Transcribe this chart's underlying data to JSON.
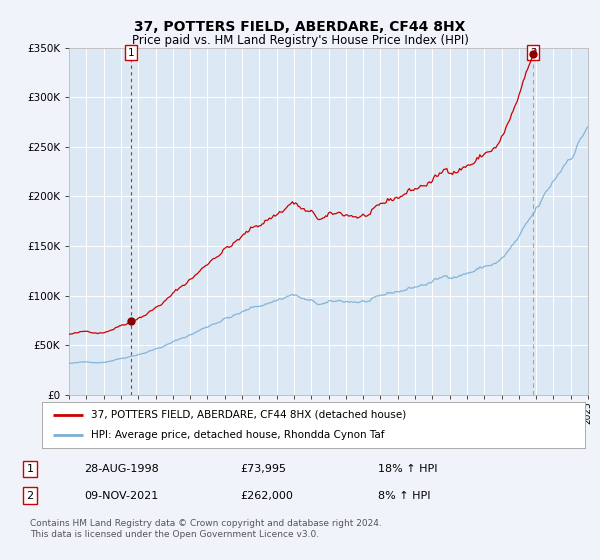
{
  "title": "37, POTTERS FIELD, ABERDARE, CF44 8HX",
  "subtitle": "Price paid vs. HM Land Registry's House Price Index (HPI)",
  "title_fontsize": 10,
  "subtitle_fontsize": 8.5,
  "plot_bg_color": "#dce9f5",
  "outer_bg_color": "#f0f4fa",
  "red_line_color": "#cc0000",
  "blue_line_color": "#7bafd4",
  "marker_color": "#8b0000",
  "vline1_color": "#cc0000",
  "vline2_color": "#888888",
  "ylim": [
    0,
    350000
  ],
  "yticks": [
    0,
    50000,
    100000,
    150000,
    200000,
    250000,
    300000,
    350000
  ],
  "purchase1_year_idx": 43,
  "purchase1_value": 73995,
  "purchase2_year_idx": 322,
  "purchase2_value": 262000,
  "legend_label1": "37, POTTERS FIELD, ABERDARE, CF44 8HX (detached house)",
  "legend_label2": "HPI: Average price, detached house, Rhondda Cynon Taf",
  "footnote1_label": "1",
  "footnote1_date": "28-AUG-1998",
  "footnote1_price": "£73,995",
  "footnote1_hpi": "18% ↑ HPI",
  "footnote2_label": "2",
  "footnote2_date": "09-NOV-2021",
  "footnote2_price": "£262,000",
  "footnote2_hpi": "8% ↑ HPI",
  "copyright_text": "Contains HM Land Registry data © Crown copyright and database right 2024.\nThis data is licensed under the Open Government Licence v3.0."
}
